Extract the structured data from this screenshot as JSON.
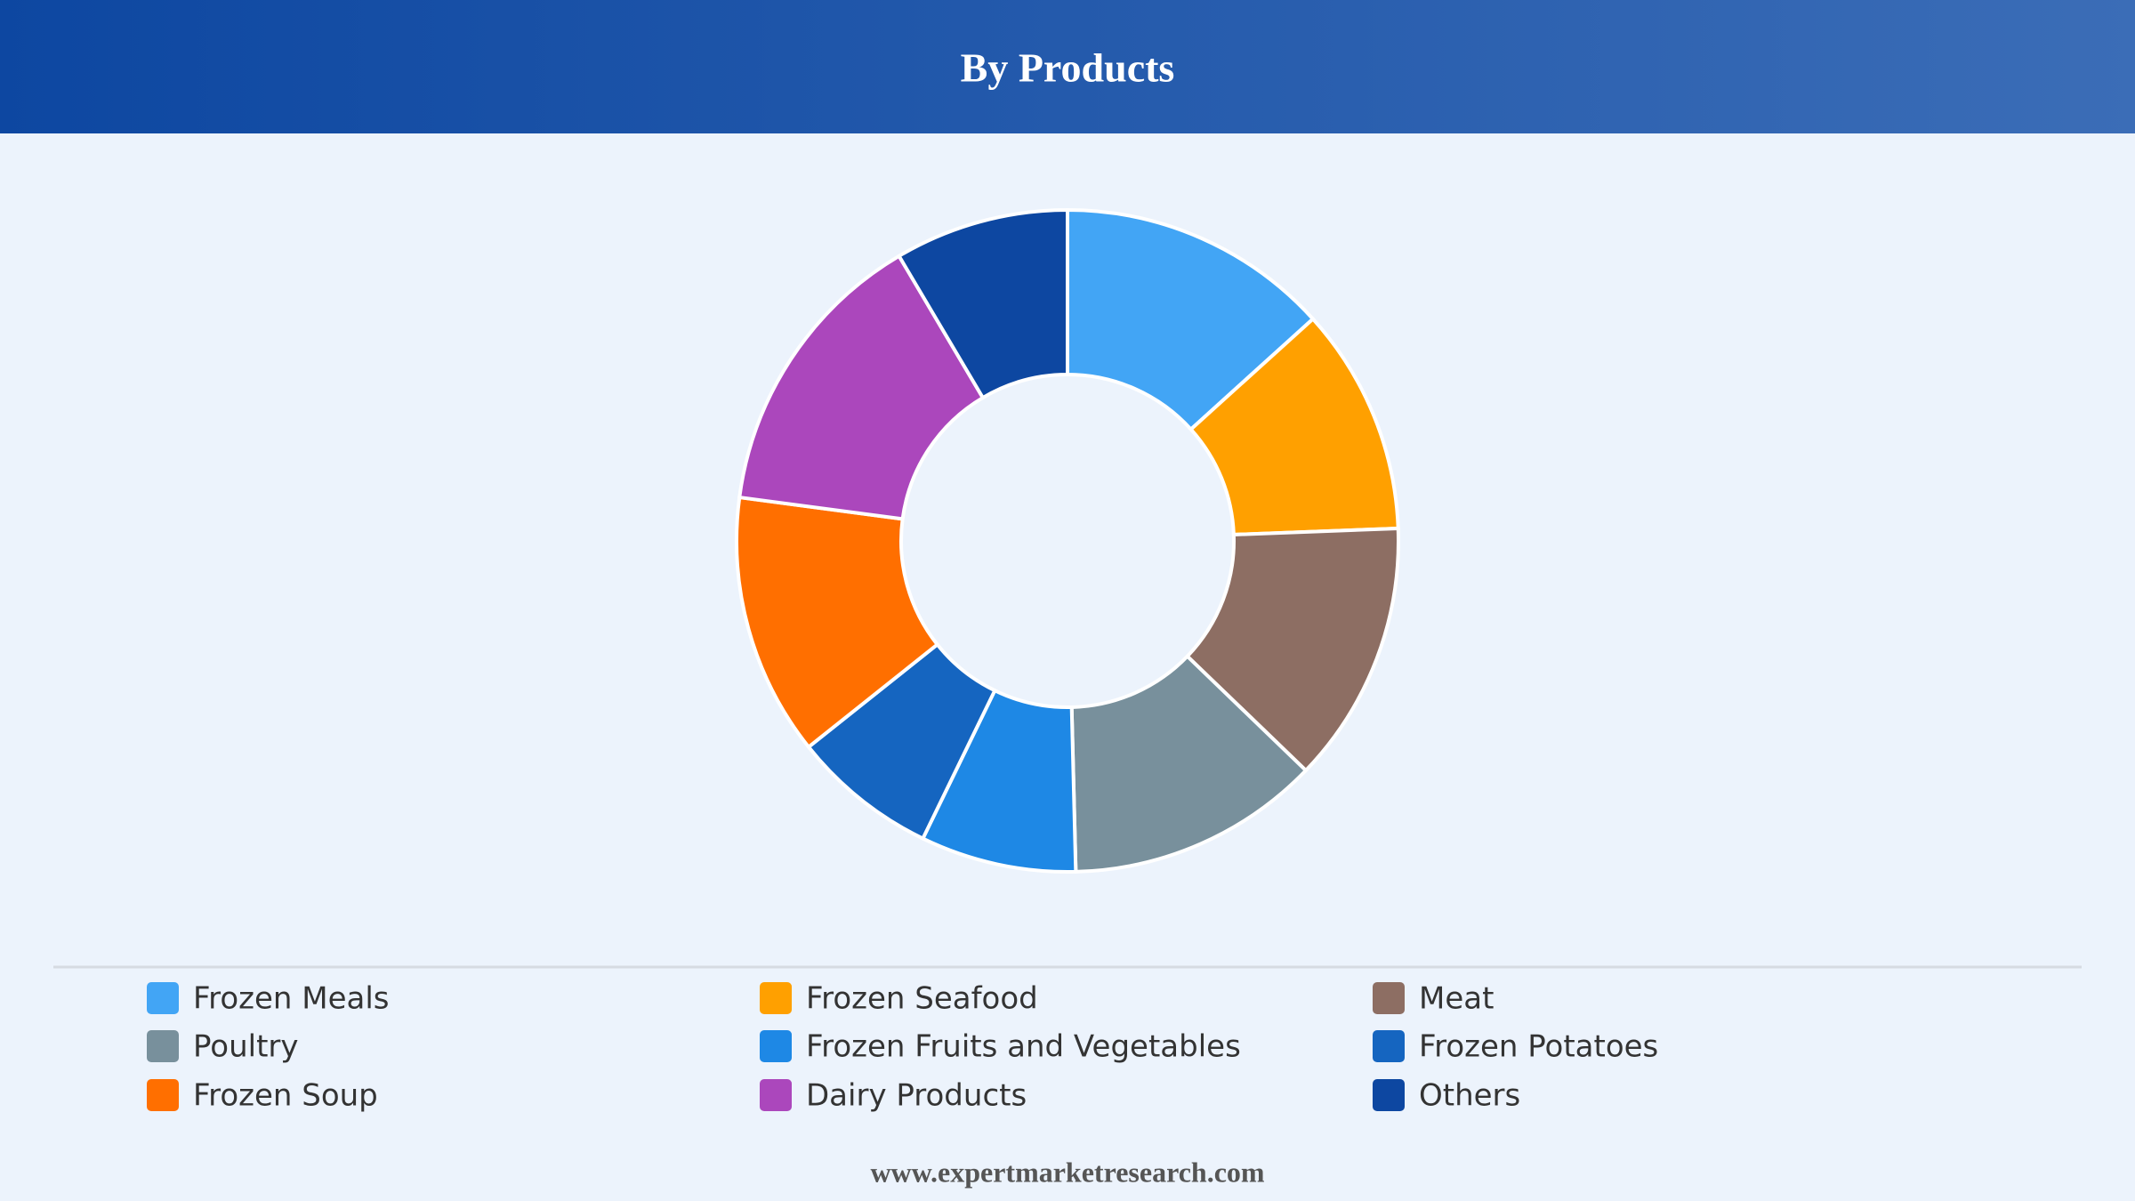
{
  "chart_data": {
    "type": "pie",
    "title": "By Products",
    "categories": [
      "Frozen Meals",
      "Frozen Seafood",
      "Meat",
      "Poultry",
      "Frozen Fruits and Vegetables",
      "Frozen Potatoes",
      "Frozen Soup",
      "Dairy Products",
      "Others"
    ],
    "values": [
      13.3,
      11.1,
      12.8,
      12.4,
      7.6,
      7.1,
      12.8,
      14.4,
      8.5
    ],
    "colors": [
      "#42a5f5",
      "#ffa000",
      "#8d6e63",
      "#78909c",
      "#1e88e5",
      "#1565c0",
      "#ff6f00",
      "#ab47bc",
      "#0d47a1"
    ],
    "donut": true
  },
  "footer": "www.expertmarketresearch.com"
}
